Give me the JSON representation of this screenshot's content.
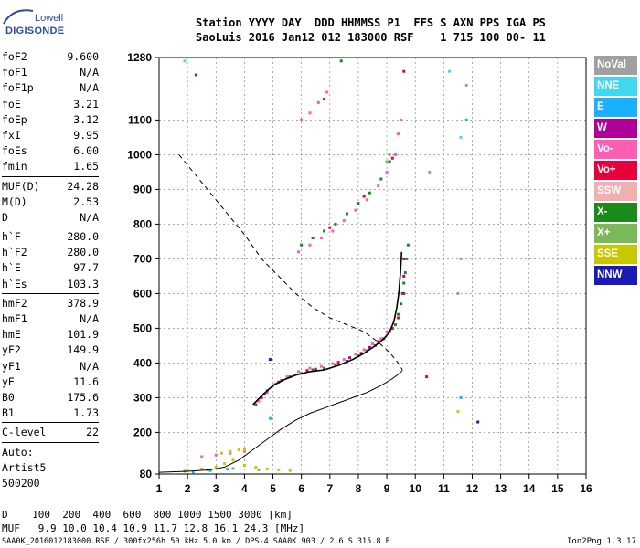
{
  "logo": {
    "line1": "Lowell",
    "line2": "DIGISONDE"
  },
  "header": {
    "line1": "Station YYYY DAY  DDD HHMMSS P1  FFS S AXN PPS IGA PS",
    "line2": "SaoLuis 2016 Jan12 012 183000 RSF    1 715 100 00- 11"
  },
  "params": [
    {
      "k": "foF2",
      "v": "9.600"
    },
    {
      "k": "foF1",
      "v": "N/A"
    },
    {
      "k": "foF1p",
      "v": "N/A"
    },
    {
      "k": "foE",
      "v": "3.21"
    },
    {
      "k": "foEp",
      "v": "3.12"
    },
    {
      "k": "fxI",
      "v": "9.95"
    },
    {
      "k": "foEs",
      "v": "6.00"
    },
    {
      "k": "fmin",
      "v": "1.65"
    },
    {
      "k": "MUF(D)",
      "v": "24.28"
    },
    {
      "k": "M(D)",
      "v": "2.53"
    },
    {
      "k": "D",
      "v": "N/A"
    },
    {
      "k": "h`F",
      "v": "280.0"
    },
    {
      "k": "h`F2",
      "v": "280.0"
    },
    {
      "k": "h`E",
      "v": "97.7"
    },
    {
      "k": "h`Es",
      "v": "103.3"
    },
    {
      "k": "hmF2",
      "v": "378.9"
    },
    {
      "k": "hmF1",
      "v": "N/A"
    },
    {
      "k": "hmE",
      "v": "101.9"
    },
    {
      "k": "yF2",
      "v": "149.9"
    },
    {
      "k": "yF1",
      "v": "N/A"
    },
    {
      "k": "yE",
      "v": "11.6"
    },
    {
      "k": "B0",
      "v": "175.6"
    },
    {
      "k": "B1",
      "v": "1.73"
    },
    {
      "k": "C-level",
      "v": "22"
    }
  ],
  "auto": {
    "line1": "Auto:",
    "line2": "Artist5",
    "line3": "500200"
  },
  "legend": [
    {
      "label": "NoVal",
      "color": "#a0a0a0"
    },
    {
      "label": "NNE",
      "color": "#40d8f0"
    },
    {
      "label": "E",
      "color": "#1ab0ff"
    },
    {
      "label": "W",
      "color": "#b0009a"
    },
    {
      "label": "Vo-",
      "color": "#ff5cb4"
    },
    {
      "label": "Vo+",
      "color": "#e8003a"
    },
    {
      "label": "SSW",
      "color": "#f0b0b0"
    },
    {
      "label": "X-",
      "color": "#1a8a1a"
    },
    {
      "label": "X+",
      "color": "#7ab85a"
    },
    {
      "label": "SSE",
      "color": "#c8c800"
    },
    {
      "label": "NNW",
      "color": "#1a1ab4"
    }
  ],
  "footer": {
    "d_line": "D    100  200  400  600  800 1000 1500 3000 [km]",
    "muf_line": "MUF   9.9 10.0 10.4 10.9 11.7 12.8 16.1 24.3 [MHz]",
    "info_line": "SAA0K_2016012183000.RSF / 300fx256h 50 kHz 5.0 km / DPS-4 SAA0K 903 / 2.6 S 315.8 E",
    "version": "Ion2Png 1.3.17"
  },
  "chart_data": {
    "type": "scatter",
    "xlim": [
      1,
      16
    ],
    "ylim": [
      80,
      1280
    ],
    "x_ticks": [
      1,
      2,
      3,
      4,
      5,
      6,
      7,
      8,
      9,
      10,
      11,
      12,
      13,
      14,
      15,
      16
    ],
    "y_ticks": [
      80,
      200,
      300,
      400,
      500,
      600,
      700,
      800,
      900,
      1000,
      1100,
      1280
    ],
    "grid": true,
    "series": [
      {
        "color": "#1a8a1a",
        "points": [
          [
            4.4,
            280
          ],
          [
            4.6,
            300
          ],
          [
            4.8,
            320
          ],
          [
            5.0,
            335
          ],
          [
            5.3,
            350
          ],
          [
            5.6,
            360
          ],
          [
            6.0,
            370
          ],
          [
            6.4,
            380
          ],
          [
            6.8,
            385
          ],
          [
            7.2,
            395
          ],
          [
            7.6,
            405
          ],
          [
            8.0,
            420
          ],
          [
            8.3,
            435
          ],
          [
            8.6,
            450
          ],
          [
            8.9,
            470
          ],
          [
            9.1,
            490
          ],
          [
            9.3,
            510
          ],
          [
            9.4,
            540
          ],
          [
            9.5,
            570
          ],
          [
            9.55,
            600
          ],
          [
            9.6,
            630
          ],
          [
            9.65,
            660
          ],
          [
            9.7,
            700
          ],
          [
            9.75,
            740
          ],
          [
            6.0,
            740
          ],
          [
            6.4,
            760
          ],
          [
            6.8,
            780
          ],
          [
            7.2,
            800
          ],
          [
            7.6,
            830
          ],
          [
            8.0,
            860
          ],
          [
            8.4,
            890
          ],
          [
            8.8,
            930
          ],
          [
            9.1,
            980
          ],
          [
            7.4,
            1270
          ]
        ]
      },
      {
        "color": "#ff5cb4",
        "points": [
          [
            4.5,
            290
          ],
          [
            4.8,
            315
          ],
          [
            5.1,
            340
          ],
          [
            5.5,
            360
          ],
          [
            5.9,
            375
          ],
          [
            6.3,
            385
          ],
          [
            6.7,
            390
          ],
          [
            7.1,
            398
          ],
          [
            7.5,
            410
          ],
          [
            7.9,
            425
          ],
          [
            8.2,
            438
          ],
          [
            8.5,
            455
          ],
          [
            8.8,
            470
          ],
          [
            9.0,
            490
          ],
          [
            5.9,
            720
          ],
          [
            6.3,
            740
          ],
          [
            6.7,
            760
          ],
          [
            7.1,
            780
          ],
          [
            7.5,
            810
          ],
          [
            7.9,
            840
          ],
          [
            8.3,
            870
          ],
          [
            8.7,
            910
          ],
          [
            9.0,
            950
          ],
          [
            9.3,
            1000
          ],
          [
            9.4,
            1060
          ],
          [
            9.5,
            1100
          ],
          [
            6.0,
            1100
          ],
          [
            6.3,
            1120
          ],
          [
            6.6,
            1150
          ],
          [
            6.9,
            1180
          ],
          [
            2.5,
            130
          ],
          [
            3.0,
            135
          ],
          [
            3.5,
            140
          ],
          [
            4.0,
            145
          ]
        ]
      },
      {
        "color": "#e8003a",
        "points": [
          [
            4.6,
            300
          ],
          [
            5.2,
            345
          ],
          [
            6.2,
            378
          ],
          [
            7.3,
            402
          ],
          [
            8.1,
            428
          ],
          [
            8.7,
            462
          ],
          [
            9.2,
            500
          ],
          [
            9.4,
            530
          ],
          [
            7.0,
            790
          ],
          [
            8.2,
            880
          ],
          [
            9.2,
            990
          ],
          [
            9.6,
            1240
          ],
          [
            10.4,
            360
          ]
        ]
      },
      {
        "color": "#b0009a",
        "points": [
          [
            4.7,
            310
          ],
          [
            6.5,
            382
          ],
          [
            7.7,
            415
          ],
          [
            8.4,
            445
          ],
          [
            9.6,
            600
          ],
          [
            9.6,
            650
          ],
          [
            9.6,
            700
          ],
          [
            6.8,
            1160
          ],
          [
            2.3,
            1230
          ]
        ]
      },
      {
        "color": "#c8c800",
        "points": [
          [
            2.0,
            90
          ],
          [
            2.5,
            95
          ],
          [
            3.0,
            100
          ],
          [
            3.3,
            110
          ],
          [
            3.6,
            120
          ],
          [
            4.0,
            105
          ],
          [
            4.4,
            100
          ],
          [
            4.8,
            95
          ],
          [
            5.2,
            92
          ],
          [
            5.6,
            90
          ],
          [
            3.2,
            140
          ],
          [
            3.5,
            145
          ],
          [
            3.8,
            150
          ],
          [
            4.0,
            150
          ],
          [
            11.5,
            260
          ]
        ]
      },
      {
        "color": "#7ab85a",
        "points": [
          [
            1.9,
            88
          ],
          [
            2.7,
            92
          ],
          [
            3.6,
            96
          ],
          [
            4.5,
            92
          ],
          [
            9.0,
            980
          ],
          [
            9.1,
            1000
          ]
        ]
      },
      {
        "color": "#1ab0ff",
        "points": [
          [
            2.2,
            86
          ],
          [
            2.8,
            90
          ],
          [
            3.4,
            94
          ],
          [
            11.6,
            300
          ],
          [
            4.9,
            240
          ],
          [
            11.8,
            1100
          ]
        ]
      },
      {
        "color": "#40d8f0",
        "points": [
          [
            11.6,
            1050
          ],
          [
            1.9,
            1270
          ],
          [
            11.2,
            1240
          ]
        ]
      },
      {
        "color": "#1a1ab4",
        "points": [
          [
            12.2,
            230
          ],
          [
            4.9,
            410
          ]
        ]
      },
      {
        "color": "#a0a0a0",
        "points": [
          [
            11.5,
            600
          ],
          [
            11.6,
            700
          ],
          [
            11.8,
            1200
          ],
          [
            10.5,
            950
          ]
        ]
      }
    ],
    "profile_solid": [
      [
        1.0,
        85
      ],
      [
        2.0,
        88
      ],
      [
        2.8,
        92
      ],
      [
        3.3,
        100
      ],
      [
        3.8,
        120
      ],
      [
        4.3,
        150
      ],
      [
        4.8,
        180
      ],
      [
        5.3,
        210
      ],
      [
        5.8,
        235
      ],
      [
        6.3,
        255
      ],
      [
        6.8,
        270
      ],
      [
        7.3,
        285
      ],
      [
        7.8,
        300
      ],
      [
        8.3,
        315
      ],
      [
        8.8,
        335
      ],
      [
        9.2,
        355
      ],
      [
        9.45,
        370
      ],
      [
        9.55,
        378.9
      ]
    ],
    "trace_black": [
      [
        4.3,
        280
      ],
      [
        4.6,
        305
      ],
      [
        5.0,
        335
      ],
      [
        5.4,
        352
      ],
      [
        5.8,
        365
      ],
      [
        6.3,
        375
      ],
      [
        6.8,
        380
      ],
      [
        7.3,
        393
      ],
      [
        7.8,
        410
      ],
      [
        8.2,
        428
      ],
      [
        8.6,
        450
      ],
      [
        8.9,
        470
      ],
      [
        9.1,
        490
      ],
      [
        9.25,
        520
      ],
      [
        9.35,
        560
      ],
      [
        9.42,
        600
      ],
      [
        9.48,
        660
      ],
      [
        9.52,
        720
      ]
    ],
    "muf_dashed": [
      [
        1.7,
        1000
      ],
      [
        2.5,
        920
      ],
      [
        3.3,
        840
      ],
      [
        4.0,
        770
      ],
      [
        4.6,
        700
      ],
      [
        5.2,
        650
      ],
      [
        5.8,
        600
      ],
      [
        6.4,
        560
      ],
      [
        7.0,
        530
      ],
      [
        7.6,
        510
      ],
      [
        8.2,
        490
      ],
      [
        8.7,
        460
      ],
      [
        9.1,
        430
      ],
      [
        9.4,
        400
      ],
      [
        9.55,
        380
      ]
    ]
  }
}
